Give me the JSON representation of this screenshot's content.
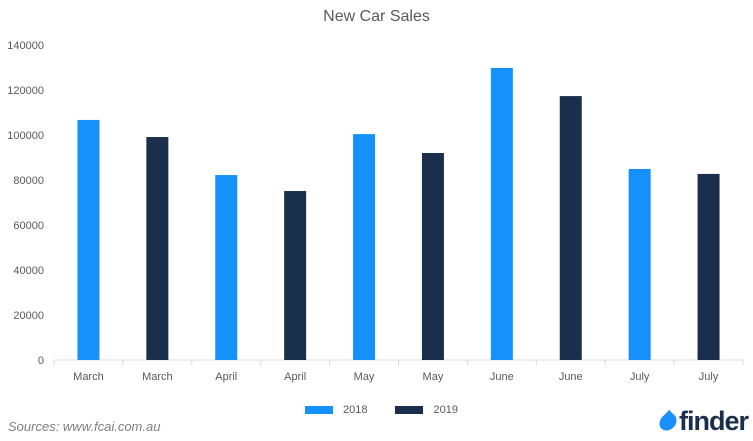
{
  "chart_data": {
    "type": "bar",
    "title": "New Car Sales",
    "categories": [
      "March",
      "March",
      "April",
      "April",
      "May",
      "May",
      "June",
      "June",
      "July",
      "July"
    ],
    "series_of_bar": [
      "2018",
      "2019",
      "2018",
      "2019",
      "2018",
      "2019",
      "2018",
      "2019",
      "2018",
      "2019"
    ],
    "values": [
      106700,
      99100,
      82200,
      75100,
      100400,
      92000,
      129800,
      117300,
      84900,
      82700
    ],
    "series": [
      {
        "name": "2018",
        "color": "#1591fd"
      },
      {
        "name": "2019",
        "color": "#1a2f4c"
      }
    ],
    "yticks": [
      0,
      20000,
      40000,
      60000,
      80000,
      100000,
      120000,
      140000
    ],
    "ylim": [
      0,
      140000
    ],
    "xlabel": "",
    "ylabel": "",
    "legend": "bottom"
  },
  "source": "Sources: www.fcai.com.au",
  "logo": "finder"
}
